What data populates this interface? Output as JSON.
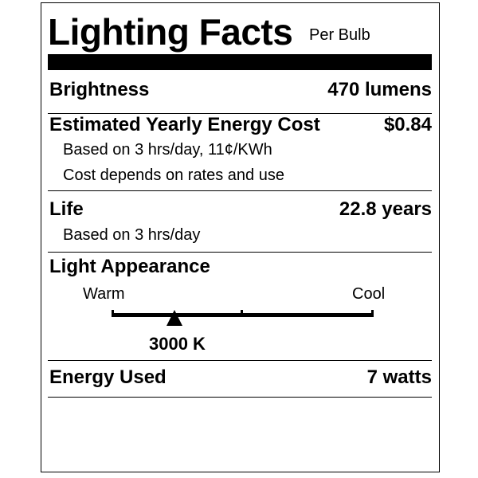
{
  "header": {
    "title": "Lighting Facts",
    "subtitle": "Per Bulb"
  },
  "brightness": {
    "label": "Brightness",
    "value": "470 lumens"
  },
  "energy_cost": {
    "label": "Estimated Yearly Energy Cost",
    "value": "$0.84",
    "note1": "Based on 3 hrs/day, 11¢/KWh",
    "note2": "Cost depends on rates and use"
  },
  "life": {
    "label": "Life",
    "value": "22.8 years",
    "note": "Based on 3 hrs/day"
  },
  "light_appearance": {
    "label": "Light Appearance",
    "warm_label": "Warm",
    "cool_label": "Cool",
    "value": "3000 K",
    "marker_position": 0.24
  },
  "energy_used": {
    "label": "Energy Used",
    "value": "7 watts"
  }
}
